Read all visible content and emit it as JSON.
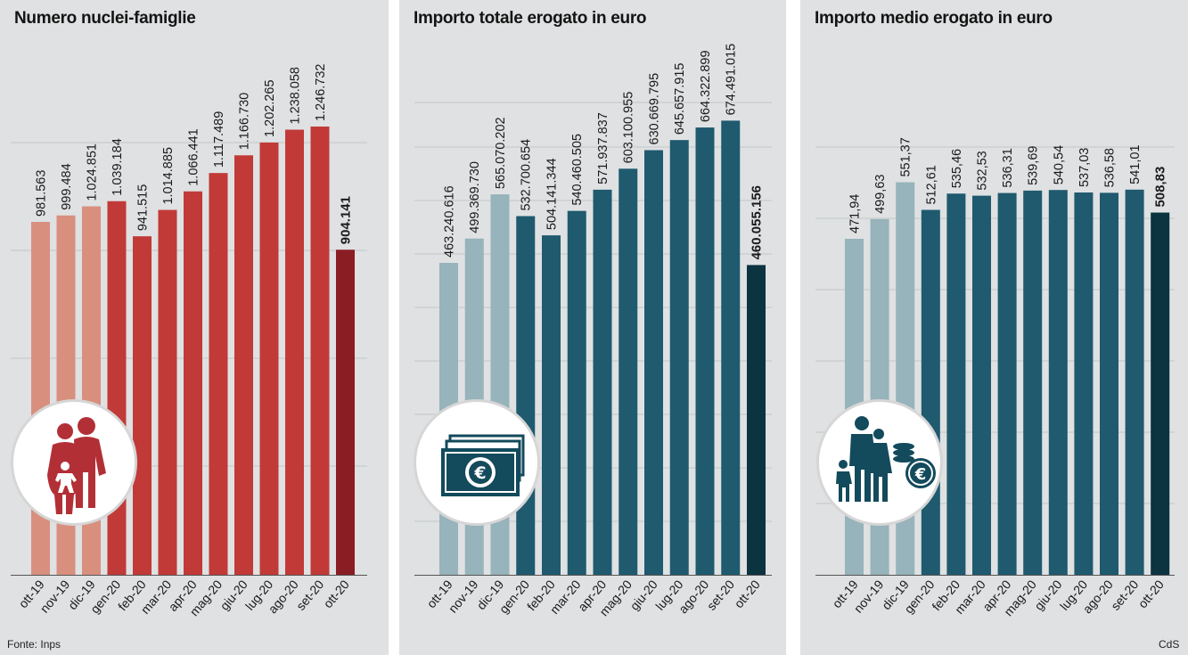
{
  "footer": {
    "source": "Fonte: Inps",
    "credit": "CdS"
  },
  "icons": [
    "family-icon",
    "banknotes-euro-icon",
    "family-coins-euro-icon"
  ],
  "colors": {
    "panel_background": "#dfe1e2",
    "red_light": "#d98f7e",
    "red_mid": "#c13a37",
    "red_dark": "#8a1c24",
    "blue_light": "#97b3bb",
    "blue_mid": "#1f5a6f",
    "blue_dark": "#0b3340"
  },
  "chart_data": [
    {
      "type": "bar",
      "title": "Numero nuclei-famiglie",
      "categories": [
        "ott-19",
        "nov-19",
        "dic-19",
        "gen-20",
        "feb-20",
        "mar-20",
        "apr-20",
        "mag-20",
        "giu-20",
        "lug-20",
        "ago-20",
        "set-20",
        "ott-20"
      ],
      "values": [
        981563,
        999484,
        1024851,
        1039184,
        941515,
        1014885,
        1066441,
        1117489,
        1166730,
        1202265,
        1238058,
        1246732,
        904141
      ],
      "value_labels": [
        "981.563",
        "999.484",
        "1.024.851",
        "1.039.184",
        "941.515",
        "1.014.885",
        "1.066.441",
        "1.117.489",
        "1.166.730",
        "1.202.265",
        "1.238.058",
        "1.246.732",
        "904.141"
      ],
      "highlight_last": true,
      "bar_colors": [
        "#d98f7e",
        "#d98f7e",
        "#d98f7e",
        "#c13a37",
        "#c13a37",
        "#c13a37",
        "#c13a37",
        "#c13a37",
        "#c13a37",
        "#c13a37",
        "#c13a37",
        "#c13a37",
        "#8a1c24"
      ],
      "grid": true
    },
    {
      "type": "bar",
      "title": "Importo totale erogato in euro",
      "categories": [
        "ott-19",
        "nov-19",
        "dic-19",
        "gen-20",
        "feb-20",
        "mar-20",
        "apr-20",
        "mag-20",
        "giu-20",
        "lug-20",
        "ago-20",
        "set-20",
        "ott-20"
      ],
      "values": [
        463240616,
        499369730,
        565070202,
        532700654,
        504141344,
        540460505,
        571937837,
        603100955,
        630669795,
        645657915,
        664322899,
        674491015,
        460055156
      ],
      "value_labels": [
        "463.240.616",
        "499.369.730",
        "565.070.202",
        "532.700.654",
        "504.141.344",
        "540.460.505",
        "571.937.837",
        "603.100.955",
        "630.669.795",
        "645.657.915",
        "664.322.899",
        "674.491.015",
        "460.055.156"
      ],
      "highlight_last": true,
      "bar_colors": [
        "#97b3bb",
        "#97b3bb",
        "#97b3bb",
        "#1f5a6f",
        "#1f5a6f",
        "#1f5a6f",
        "#1f5a6f",
        "#1f5a6f",
        "#1f5a6f",
        "#1f5a6f",
        "#1f5a6f",
        "#1f5a6f",
        "#0b3340"
      ],
      "grid": true
    },
    {
      "type": "bar",
      "title": "Importo medio erogato in euro",
      "categories": [
        "ott-19",
        "nov-19",
        "dic-19",
        "gen-20",
        "feb-20",
        "mar-20",
        "apr-20",
        "mag-20",
        "giu-20",
        "lug-20",
        "ago-20",
        "set-20",
        "ott-20"
      ],
      "values": [
        471.94,
        499.63,
        551.37,
        512.61,
        535.46,
        532.53,
        536.31,
        539.69,
        540.54,
        537.03,
        536.58,
        541.01,
        508.83
      ],
      "value_labels": [
        "471,94",
        "499,63",
        "551,37",
        "512,61",
        "535,46",
        "532,53",
        "536,31",
        "539,69",
        "540,54",
        "537,03",
        "536,58",
        "541,01",
        "508,83"
      ],
      "highlight_last": true,
      "bar_colors": [
        "#97b3bb",
        "#97b3bb",
        "#97b3bb",
        "#1f5a6f",
        "#1f5a6f",
        "#1f5a6f",
        "#1f5a6f",
        "#1f5a6f",
        "#1f5a6f",
        "#1f5a6f",
        "#1f5a6f",
        "#1f5a6f",
        "#0b3340"
      ],
      "grid": true
    }
  ]
}
